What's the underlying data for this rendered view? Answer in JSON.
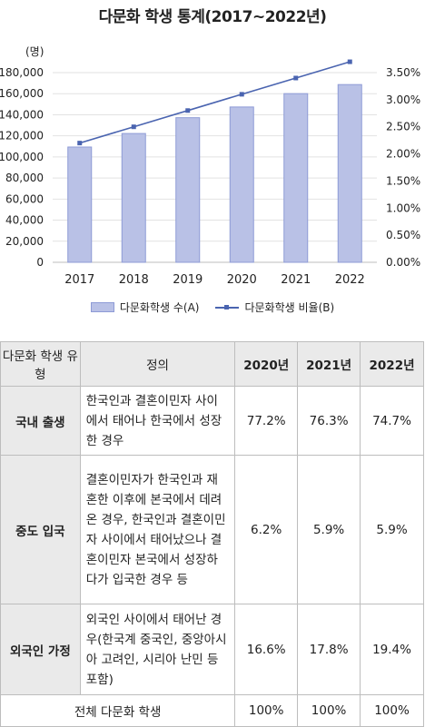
{
  "title": "다문화 학생 통계(2017~2022년)",
  "chart_data": {
    "type": "bar+line",
    "categories": [
      "2017",
      "2018",
      "2019",
      "2020",
      "2021",
      "2022"
    ],
    "left_axis": {
      "unit": "(명)",
      "ticks": [
        "0",
        "20,000",
        "40,000",
        "60,000",
        "80,000",
        "100,000",
        "120,000",
        "140,000",
        "160,000",
        "180,000"
      ],
      "ylim": [
        0,
        180000
      ]
    },
    "right_axis": {
      "ticks": [
        "0.00%",
        "0.50%",
        "1.00%",
        "1.50%",
        "2.00%",
        "2.50%",
        "3.00%",
        "3.50%"
      ],
      "ylim": [
        0,
        3.5
      ]
    },
    "series": [
      {
        "name": "다문화학생 수(A)",
        "type": "bar",
        "axis": "left",
        "values": [
          109387,
          122212,
          137225,
          147378,
          160058,
          168645
        ]
      },
      {
        "name": "다문화학생 비율(B)",
        "type": "line",
        "axis": "right",
        "values": [
          2.2,
          2.5,
          2.8,
          3.1,
          3.4,
          3.7
        ]
      }
    ],
    "colors": {
      "bar_fill": "#b9c1e6",
      "bar_stroke": "#8e9bd6",
      "line": "#4a64b0",
      "grid": "#e2e2e2"
    }
  },
  "table": {
    "headers": [
      "다문화 학생 유형",
      "정의",
      "2020년",
      "2021년",
      "2022년"
    ],
    "rows": [
      {
        "type": "국내 출생",
        "definition": "한국인과 결혼이민자 사이에서 태어나 한국에서 성장한 경우",
        "v2020": "77.2%",
        "v2021": "76.3%",
        "v2022": "74.7%"
      },
      {
        "type": "중도 입국",
        "definition": "결혼이민자가 한국인과 재혼한 이후에 본국에서 데려온 경우, 한국인과 결혼이민자 사이에서 태어났으나 결혼이민자 본국에서 성장하다가 입국한 경우 등",
        "v2020": "6.2%",
        "v2021": "5.9%",
        "v2022": "5.9%"
      },
      {
        "type": "외국인 가정",
        "definition": "외국인 사이에서 태어난 경우(한국계 중국인, 중앙아시아 고려인, 시리아 난민 등 포함)",
        "v2020": "16.6%",
        "v2021": "17.8%",
        "v2022": "19.4%"
      }
    ],
    "total": {
      "label": "전체 다문화 학생",
      "v2020": "100%",
      "v2021": "100%",
      "v2022": "100%"
    }
  }
}
